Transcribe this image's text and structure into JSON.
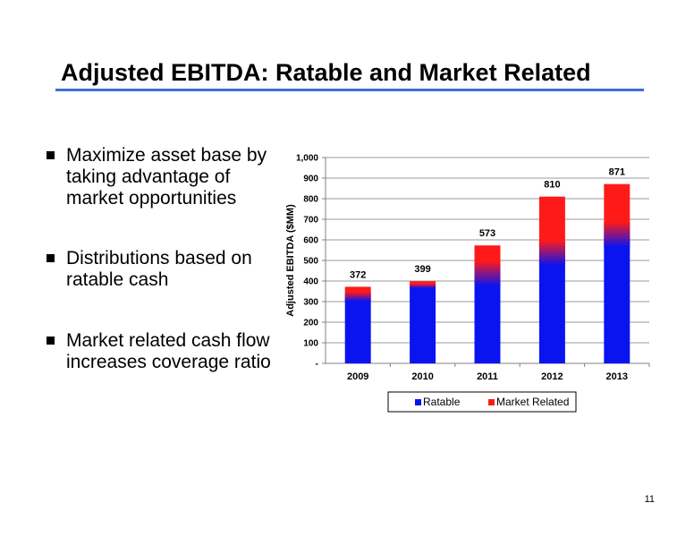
{
  "slide": {
    "title": "Adjusted EBITDA: Ratable and Market Related",
    "page_number": "11",
    "accent_color": "#3e6fd8"
  },
  "bullets": [
    {
      "text": "Maximize asset base by\ntaking advantage of\nmarket opportunities"
    },
    {
      "text": "Distributions based on\nratable cash"
    },
    {
      "text": "Market related cash flow\nincreases coverage ratio"
    }
  ],
  "chart_data": {
    "type": "bar",
    "stacked": true,
    "categories": [
      "2009",
      "2010",
      "2011",
      "2012",
      "2013"
    ],
    "series": [
      {
        "name": "Ratable",
        "color": "#0a14f0",
        "values": [
          322,
          375,
          430,
          530,
          620
        ]
      },
      {
        "name": "Market Related",
        "color": "#ff1a1a",
        "values": [
          50,
          24,
          143,
          280,
          251
        ]
      }
    ],
    "totals": [
      "372",
      "399",
      "573",
      "810",
      "871"
    ],
    "ylabel": "Adjusted EBITDA ($MM)",
    "ylim": [
      0,
      1000
    ],
    "yticks": [
      {
        "value": 0,
        "label": "-"
      },
      {
        "value": 100,
        "label": "100"
      },
      {
        "value": 200,
        "label": "200"
      },
      {
        "value": 300,
        "label": "300"
      },
      {
        "value": 400,
        "label": "400"
      },
      {
        "value": 500,
        "label": "500"
      },
      {
        "value": 600,
        "label": "600"
      },
      {
        "value": 700,
        "label": "700"
      },
      {
        "value": 800,
        "label": "800"
      },
      {
        "value": 900,
        "label": "900"
      },
      {
        "value": 1000,
        "label": "1,000"
      }
    ],
    "grid": true,
    "legend_position": "bottom"
  }
}
